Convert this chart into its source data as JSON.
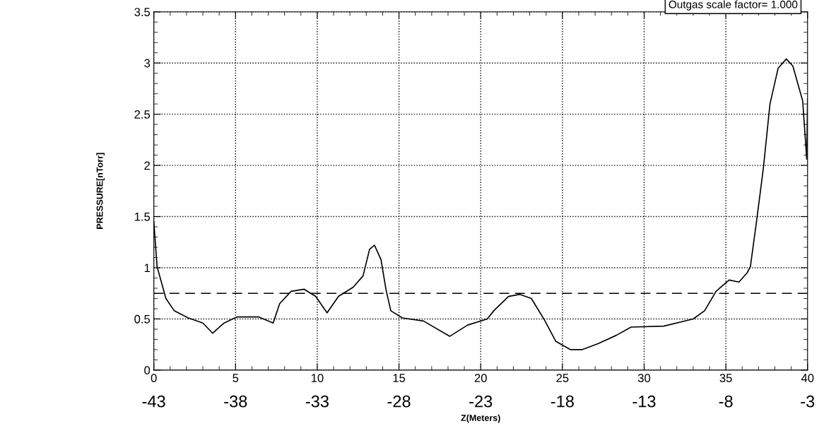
{
  "chart_data": {
    "type": "line",
    "xlabel": "Z(Meters)",
    "ylabel": "PRESSURE[nTorr]",
    "annotations": [
      "Outgas scale factor= 1.000"
    ],
    "xlim": [
      0,
      40
    ],
    "xticks": [
      0,
      5,
      10,
      15,
      20,
      25,
      30,
      35,
      40
    ],
    "x2lim": [
      -43,
      -3
    ],
    "x2ticks": [
      -43,
      -38,
      -33,
      -28,
      -23,
      -18,
      -13,
      -8,
      -3
    ],
    "ylim": [
      0,
      3.5
    ],
    "yticks": [
      0,
      0.5,
      1,
      1.5,
      2,
      2.5,
      3,
      3.5
    ],
    "grid": true,
    "marker": "none",
    "line_style": "solid",
    "ref_lines": [
      {
        "axis": "y",
        "value": 0.75,
        "color": "#000000",
        "line_style": "dashed"
      }
    ],
    "series": [
      {
        "color": "#000000",
        "x": [
          0,
          0.2,
          0.74,
          1.25,
          2.1,
          3.0,
          3.6,
          4.3,
          5.1,
          6.4,
          7.3,
          7.7,
          8.4,
          9.2,
          9.9,
          10.6,
          11.3,
          12.2,
          12.8,
          13.2,
          13.5,
          13.9,
          14.2,
          14.5,
          15.2,
          16.5,
          18.1,
          19.2,
          20.4,
          20.8,
          21.7,
          22.4,
          23.1,
          23.9,
          24.6,
          25.5,
          26.2,
          27.2,
          28.3,
          29.2,
          31.2,
          33.0,
          33.7,
          34.4,
          35.2,
          35.8,
          36.3,
          36.5,
          36.9,
          37.3,
          37.7,
          38.2,
          38.7,
          39.1,
          39.7,
          39.95,
          40.0
        ],
        "values": [
          1.45,
          1.01,
          0.7,
          0.58,
          0.51,
          0.46,
          0.36,
          0.46,
          0.52,
          0.52,
          0.46,
          0.65,
          0.77,
          0.79,
          0.72,
          0.56,
          0.72,
          0.81,
          0.92,
          1.18,
          1.22,
          1.08,
          0.79,
          0.58,
          0.51,
          0.48,
          0.33,
          0.44,
          0.5,
          0.58,
          0.72,
          0.74,
          0.7,
          0.49,
          0.28,
          0.2,
          0.2,
          0.26,
          0.34,
          0.42,
          0.43,
          0.5,
          0.58,
          0.77,
          0.88,
          0.86,
          0.95,
          1.01,
          1.48,
          1.98,
          2.6,
          2.95,
          3.04,
          2.97,
          2.63,
          2.06,
          2.65
        ]
      }
    ]
  }
}
